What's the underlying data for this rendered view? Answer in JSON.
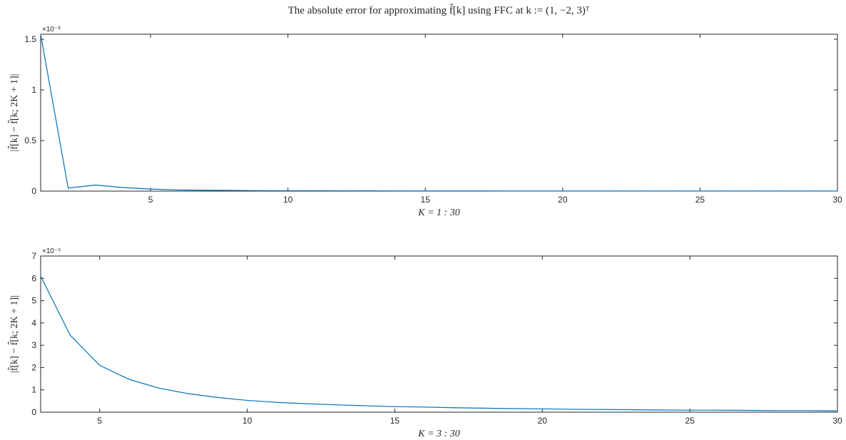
{
  "figure": {
    "title": "The absolute error for approximating f̂[k] using FFC at k := (1, −2, 3)ᵀ"
  },
  "chart_data": [
    {
      "type": "line",
      "xlabel": "K = 1 : 30",
      "ylabel": "|f̂[k] − f̂[k; 2K + 1]|",
      "y_exponent": "×10⁻³",
      "xlim": [
        1,
        30
      ],
      "ylim": [
        0,
        1.55
      ],
      "xticks": [
        5,
        10,
        15,
        20,
        25,
        30
      ],
      "yticks": [
        0,
        0.5,
        1,
        1.5
      ],
      "ytick_labels": [
        "0",
        "0.5",
        "1",
        "1.5"
      ],
      "series_color": "#0072BD",
      "x": [
        1,
        2,
        3,
        4,
        5,
        6,
        7,
        8,
        9,
        10,
        11,
        12,
        13,
        14,
        15,
        16,
        17,
        18,
        19,
        20,
        21,
        22,
        23,
        24,
        25,
        26,
        27,
        28,
        29,
        30
      ],
      "y": [
        1.55,
        0.03,
        0.06,
        0.035,
        0.02,
        0.012,
        0.009,
        0.007,
        0.005,
        0.004,
        0.0035,
        0.003,
        0.0026,
        0.0023,
        0.002,
        0.0018,
        0.0016,
        0.0015,
        0.0014,
        0.0013,
        0.0012,
        0.0011,
        0.001,
        0.0009,
        0.0008,
        0.0008,
        0.0007,
        0.0007,
        0.0006,
        0.0006
      ]
    },
    {
      "type": "line",
      "xlabel": "K = 3 : 30",
      "ylabel": "|f̂[k] − f̂[k; 2K + 1]|",
      "y_exponent": "×10⁻⁵",
      "xlim": [
        3,
        30
      ],
      "ylim": [
        0,
        7
      ],
      "xticks": [
        5,
        10,
        15,
        20,
        25,
        30
      ],
      "yticks": [
        0,
        1,
        2,
        3,
        4,
        5,
        6,
        7
      ],
      "ytick_labels": [
        "0",
        "1",
        "2",
        "3",
        "4",
        "5",
        "6",
        "7"
      ],
      "series_color": "#0072BD",
      "x": [
        3,
        4,
        5,
        6,
        7,
        8,
        9,
        10,
        11,
        12,
        13,
        14,
        15,
        16,
        17,
        18,
        19,
        20,
        21,
        22,
        23,
        24,
        25,
        26,
        27,
        28,
        29,
        30
      ],
      "y": [
        6.1,
        3.45,
        2.1,
        1.47,
        1.08,
        0.83,
        0.66,
        0.53,
        0.44,
        0.38,
        0.33,
        0.29,
        0.25,
        0.23,
        0.2,
        0.18,
        0.16,
        0.15,
        0.13,
        0.12,
        0.11,
        0.1,
        0.09,
        0.09,
        0.08,
        0.07,
        0.07,
        0.06
      ]
    }
  ]
}
